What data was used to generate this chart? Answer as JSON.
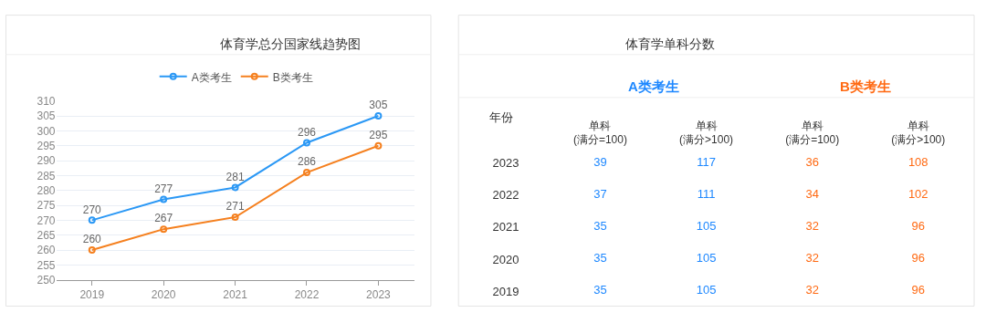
{
  "chart_data": [
    {
      "type": "line",
      "title": "体育学总分国家线趋势图",
      "categories": [
        "2019",
        "2020",
        "2021",
        "2022",
        "2023"
      ],
      "series": [
        {
          "name": "A类考生",
          "color": "#2b98f5",
          "values": [
            270,
            277,
            281,
            296,
            305
          ]
        },
        {
          "name": "B类考生",
          "color": "#f5801f",
          "values": [
            260,
            267,
            271,
            286,
            295
          ]
        }
      ],
      "ylim": [
        250,
        310
      ],
      "yticks": [
        250,
        255,
        260,
        265,
        270,
        275,
        280,
        285,
        290,
        295,
        300,
        305,
        310
      ],
      "grid": "y",
      "legend": "top",
      "marker": "circle",
      "line_style": "solid",
      "data_labels": true
    },
    {
      "type": "heatmap",
      "title": "体育学单科分数",
      "ylabel": "年份",
      "annotations": [
        "A类考生",
        "B类考生"
      ],
      "categories": [
        "单科\n(满分=100)",
        "单科\n(满分>100)",
        "单科\n(满分=100)",
        "单科\n(满分>100)"
      ],
      "y_categories": [
        "2023",
        "2022",
        "2021",
        "2020",
        "2019"
      ],
      "colors": [
        "#1e88ff",
        "#1e88ff",
        "#ff6a13",
        "#ff6a13"
      ],
      "cells": [
        [
          39,
          117,
          36,
          108
        ],
        [
          37,
          111,
          34,
          102
        ],
        [
          35,
          105,
          32,
          96
        ],
        [
          35,
          105,
          32,
          96
        ],
        [
          35,
          105,
          32,
          96
        ]
      ],
      "data_labels": true
    }
  ]
}
